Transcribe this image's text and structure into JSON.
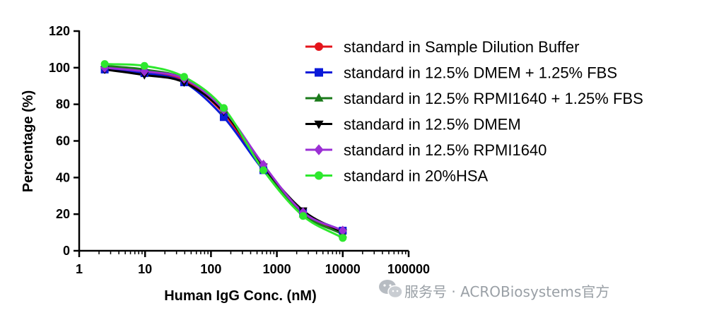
{
  "chart_data": {
    "type": "line",
    "title": "",
    "xlabel": "Human IgG Conc. (nM)",
    "ylabel": "Percentage (%)",
    "xscale": "log",
    "xlim": [
      1,
      100000
    ],
    "ylim": [
      0,
      120
    ],
    "x_ticks": [
      1,
      10,
      100,
      1000,
      10000,
      100000
    ],
    "x_tick_labels": [
      "1",
      "10",
      "100",
      "1000",
      "10000",
      "100000"
    ],
    "y_ticks": [
      0,
      20,
      40,
      60,
      80,
      100,
      120
    ],
    "y_tick_labels": [
      "0",
      "20",
      "40",
      "60",
      "80",
      "100",
      "120"
    ],
    "grid": false,
    "legend_position": "top-right",
    "x": [
      2.44,
      9.77,
      39.1,
      156.25,
      625,
      2500,
      10000
    ],
    "series": [
      {
        "name": "standard in Sample Dilution Buffer",
        "color": "#e4141b",
        "marker": "circle",
        "values": [
          100,
          98,
          93,
          75,
          45,
          21,
          10
        ]
      },
      {
        "name": "standard in 12.5% DMEM + 1.25% FBS",
        "color": "#0a1ad9",
        "marker": "square",
        "values": [
          99,
          97,
          92,
          73,
          44,
          21,
          11
        ]
      },
      {
        "name": "standard in 12.5% RPMI1640 + 1.25% FBS",
        "color": "#1a7a1a",
        "marker": "triangle-up",
        "values": [
          101,
          99,
          94,
          77,
          45,
          20,
          9
        ]
      },
      {
        "name": "standard in 12.5% DMEM",
        "color": "#000000",
        "marker": "triangle-down",
        "values": [
          99,
          96,
          92,
          76,
          46,
          22,
          10
        ]
      },
      {
        "name": "standard in 12.5% RPMI1640",
        "color": "#9b2fd4",
        "marker": "diamond",
        "values": [
          100,
          98,
          94,
          77,
          47,
          21,
          11
        ]
      },
      {
        "name": "standard in 20%HSA",
        "color": "#2ee82e",
        "marker": "circle",
        "values": [
          102,
          101,
          95,
          78,
          44,
          19,
          7
        ]
      }
    ]
  },
  "watermark": {
    "text": "服务号 · ACROBiosystems官方",
    "icon": "wechat-icon"
  }
}
